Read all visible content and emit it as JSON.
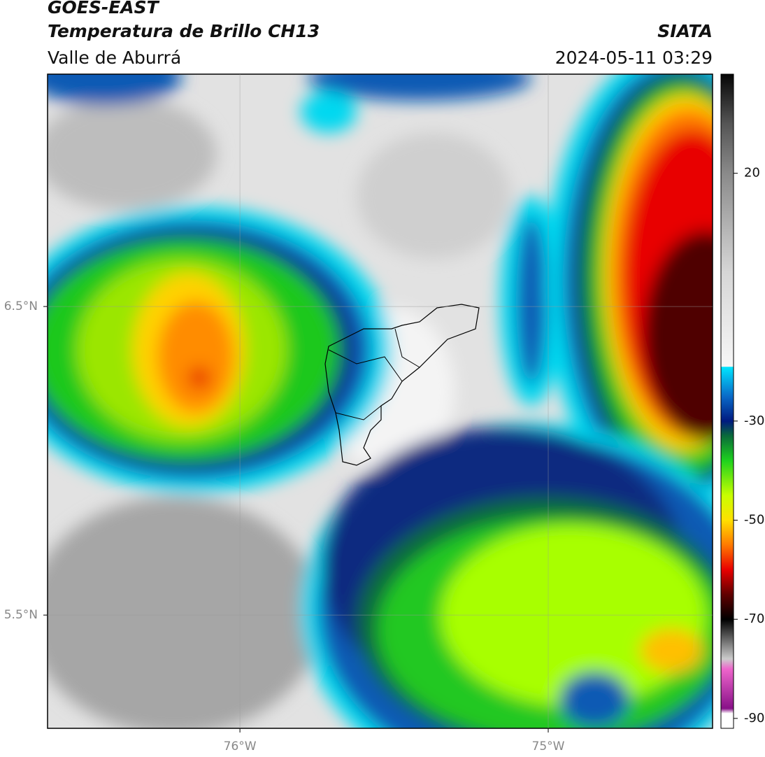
{
  "header": {
    "title": "GOES-EAST",
    "subtitle": "Temperatura de Brillo CH13",
    "source": "SIATA",
    "region": "Valle de Aburrá",
    "datetime": "2024-05-11 03:29"
  },
  "map": {
    "xlim": [
      -76.624,
      -74.467
    ],
    "ylim": [
      5.133,
      7.253
    ],
    "xticks": [
      {
        "value": -76,
        "label": "76°W"
      },
      {
        "value": -75,
        "label": "75°W"
      }
    ],
    "yticks": [
      {
        "value": 6.5,
        "label": "6.5°N"
      },
      {
        "value": 5.5,
        "label": "5.5°N"
      }
    ],
    "grid": true
  },
  "colorbar": {
    "lim": [
      -92,
      40
    ],
    "ticks": [
      20,
      -30,
      -50,
      -70,
      -90
    ],
    "stops": [
      {
        "value": 40,
        "color": "#050505"
      },
      {
        "value": 30,
        "color": "#555555"
      },
      {
        "value": 20,
        "color": "#8a8a8a"
      },
      {
        "value": 0,
        "color": "#d6d6d6"
      },
      {
        "value": -19,
        "color": "#f7f7f7"
      },
      {
        "value": -19.1,
        "color": "#00e5ff"
      },
      {
        "value": -25,
        "color": "#0a6ac8"
      },
      {
        "value": -30,
        "color": "#001a80"
      },
      {
        "value": -33,
        "color": "#0a6b3a"
      },
      {
        "value": -38,
        "color": "#1ed21e"
      },
      {
        "value": -45,
        "color": "#c8ff00"
      },
      {
        "value": -50,
        "color": "#ffe000"
      },
      {
        "value": -55,
        "color": "#ff7a00"
      },
      {
        "value": -60,
        "color": "#e80000"
      },
      {
        "value": -65,
        "color": "#600000"
      },
      {
        "value": -70,
        "color": "#000000"
      },
      {
        "value": -72,
        "color": "#333333"
      },
      {
        "value": -78,
        "color": "#cccccc"
      },
      {
        "value": -80,
        "color": "#ee66cc"
      },
      {
        "value": -88,
        "color": "#881188"
      },
      {
        "value": -89,
        "color": "#ffffff"
      },
      {
        "value": -92,
        "color": "#ffffff"
      }
    ]
  }
}
